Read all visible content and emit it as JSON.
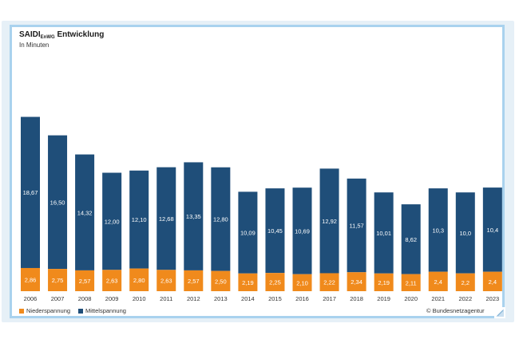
{
  "title_main": "SAIDI",
  "title_sub": "EnWG",
  "title_rest": " Entwicklung",
  "subtitle": "In Minuten",
  "credit": "© Bundesnetzagentur",
  "colors": {
    "mittelspannung": "#1f4e79",
    "niederspannung": "#f08a1c",
    "frame": "#a9d2ee"
  },
  "chart_data": {
    "type": "bar",
    "stacked": true,
    "title": "SAIDI EnWG Entwicklung",
    "ylabel": "In Minuten",
    "categories": [
      "2006",
      "2007",
      "2008",
      "2009",
      "2010",
      "2011",
      "2012",
      "2013",
      "2014",
      "2015",
      "2016",
      "2017",
      "2018",
      "2019",
      "2020",
      "2021",
      "2022",
      "2023"
    ],
    "series": [
      {
        "name": "Niederspannung",
        "values": [
          2.86,
          2.75,
          2.57,
          2.63,
          2.8,
          2.63,
          2.57,
          2.5,
          2.19,
          2.25,
          2.1,
          2.22,
          2.34,
          2.19,
          2.11,
          2.4,
          2.2,
          2.4
        ],
        "labels": [
          "2,86",
          "2,75",
          "2,57",
          "2,63",
          "2,80",
          "2,63",
          "2,57",
          "2,50",
          "2,19",
          "2,25",
          "2,10",
          "2,22",
          "2,34",
          "2,19",
          "2,11",
          "2,4",
          "2,2",
          "2,4"
        ]
      },
      {
        "name": "Mittelspannung",
        "values": [
          18.67,
          16.5,
          14.32,
          12.0,
          12.1,
          12.68,
          13.35,
          12.8,
          10.09,
          10.45,
          10.69,
          12.92,
          11.57,
          10.01,
          8.62,
          10.3,
          10.0,
          10.4
        ],
        "labels": [
          "18,67",
          "16,50",
          "14,32",
          "12,00",
          "12,10",
          "12,68",
          "13,35",
          "12,80",
          "10,09",
          "10,45",
          "10,69",
          "12,92",
          "11,57",
          "10,01",
          "8,62",
          "10,3",
          "10,0",
          "10,4"
        ]
      }
    ],
    "ylim": [
      0,
      22
    ],
    "legend_position": "bottom-left"
  }
}
